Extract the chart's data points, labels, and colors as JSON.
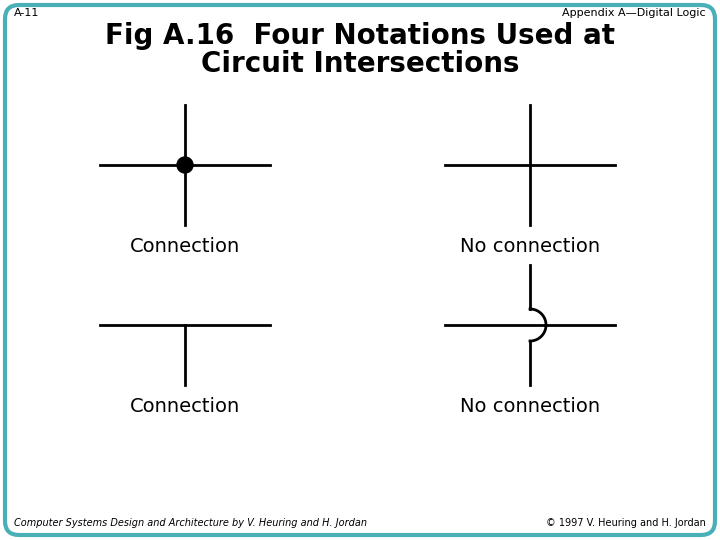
{
  "title_line1": "Fig A.16  Four Notations Used at",
  "title_line2": "Circuit Intersections",
  "header_left": "A-11",
  "header_right": "Appendix A—Digital Logic",
  "footer_left": "Computer Systems Design and Architecture by V. Heuring and H. Jordan",
  "footer_right": "© 1997 V. Heuring and H. Jordan",
  "label_top_left": "Connection",
  "label_top_right": "No connection",
  "label_bot_left": "Connection",
  "label_bot_right": "No connection",
  "bg_color": "#ffffff",
  "border_color": "#4ab0b8",
  "line_color": "#000000",
  "line_width": 2.0,
  "title_fontsize": 20,
  "header_fontsize": 8,
  "label_fontsize": 14,
  "footer_fontsize": 7
}
